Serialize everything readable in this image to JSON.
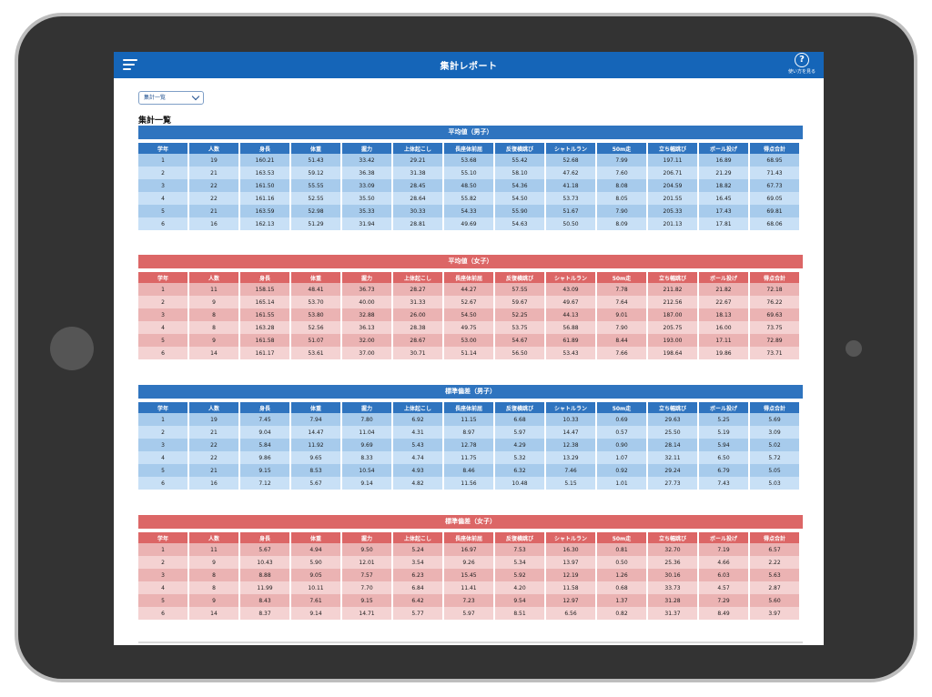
{
  "app": {
    "title": "集計レポート",
    "help_label": "使い方を見る",
    "help_icon_glyph": "?",
    "menu_icon": "hamburger-menu-icon",
    "colors": {
      "header": "#1565b8",
      "male": "#2f74bf",
      "female": "#dc6666",
      "frame": "#333333"
    }
  },
  "selector": {
    "value": "集計一覧"
  },
  "page_title": "集計一覧",
  "columns": [
    "学年",
    "人数",
    "身長",
    "体重",
    "握力",
    "上体起こし",
    "長座体前屈",
    "反復横跳び",
    "シャトルラン",
    "50m走",
    "立ち幅跳び",
    "ボール投げ",
    "得点合計"
  ],
  "sections": [
    {
      "title": "平均値（男子）",
      "rows": [
        [
          "1",
          "19",
          "160.21",
          "51.43",
          "33.42",
          "29.21",
          "53.68",
          "55.42",
          "52.68",
          "7.99",
          "197.11",
          "16.89",
          "68.95"
        ],
        [
          "2",
          "21",
          "163.53",
          "59.12",
          "36.38",
          "31.38",
          "55.10",
          "58.10",
          "47.62",
          "7.60",
          "206.71",
          "21.29",
          "71.43"
        ],
        [
          "3",
          "22",
          "161.50",
          "55.55",
          "33.09",
          "28.45",
          "48.50",
          "54.36",
          "41.18",
          "8.08",
          "204.59",
          "18.82",
          "67.73"
        ],
        [
          "4",
          "22",
          "161.16",
          "52.55",
          "35.50",
          "28.64",
          "55.82",
          "54.50",
          "53.73",
          "8.05",
          "201.55",
          "16.45",
          "69.05"
        ],
        [
          "5",
          "21",
          "163.59",
          "52.98",
          "35.33",
          "30.33",
          "54.33",
          "55.90",
          "51.67",
          "7.90",
          "205.33",
          "17.43",
          "69.81"
        ],
        [
          "6",
          "16",
          "162.13",
          "51.29",
          "31.94",
          "28.81",
          "49.69",
          "54.63",
          "50.50",
          "8.09",
          "201.13",
          "17.81",
          "68.06"
        ]
      ]
    },
    {
      "title": "平均値（女子）",
      "rows": [
        [
          "1",
          "11",
          "158.15",
          "48.41",
          "36.73",
          "28.27",
          "44.27",
          "57.55",
          "43.09",
          "7.78",
          "211.82",
          "21.82",
          "72.18"
        ],
        [
          "2",
          "9",
          "165.14",
          "53.70",
          "40.00",
          "31.33",
          "52.67",
          "59.67",
          "49.67",
          "7.64",
          "212.56",
          "22.67",
          "76.22"
        ],
        [
          "3",
          "8",
          "161.55",
          "53.80",
          "32.88",
          "26.00",
          "54.50",
          "52.25",
          "44.13",
          "9.01",
          "187.00",
          "18.13",
          "69.63"
        ],
        [
          "4",
          "8",
          "163.28",
          "52.56",
          "36.13",
          "28.38",
          "49.75",
          "53.75",
          "56.88",
          "7.90",
          "205.75",
          "16.00",
          "73.75"
        ],
        [
          "5",
          "9",
          "161.58",
          "51.07",
          "32.00",
          "28.67",
          "53.00",
          "54.67",
          "61.89",
          "8.44",
          "193.00",
          "17.11",
          "72.89"
        ],
        [
          "6",
          "14",
          "161.17",
          "53.61",
          "37.00",
          "30.71",
          "51.14",
          "56.50",
          "53.43",
          "7.66",
          "198.64",
          "19.86",
          "73.71"
        ]
      ]
    },
    {
      "title": "標準偏差（男子）",
      "rows": [
        [
          "1",
          "19",
          "7.45",
          "7.94",
          "7.80",
          "6.92",
          "11.15",
          "6.68",
          "10.33",
          "0.69",
          "29.63",
          "5.25",
          "5.69"
        ],
        [
          "2",
          "21",
          "9.04",
          "14.47",
          "11.04",
          "4.31",
          "8.97",
          "5.97",
          "14.47",
          "0.57",
          "25.50",
          "5.19",
          "3.09"
        ],
        [
          "3",
          "22",
          "5.84",
          "11.92",
          "9.69",
          "5.43",
          "12.78",
          "4.29",
          "12.38",
          "0.90",
          "28.14",
          "5.94",
          "5.02"
        ],
        [
          "4",
          "22",
          "9.86",
          "9.65",
          "8.33",
          "4.74",
          "11.75",
          "5.32",
          "13.29",
          "1.07",
          "32.11",
          "6.50",
          "5.72"
        ],
        [
          "5",
          "21",
          "9.15",
          "8.53",
          "10.54",
          "4.93",
          "8.46",
          "6.32",
          "7.46",
          "0.92",
          "29.24",
          "6.79",
          "5.05"
        ],
        [
          "6",
          "16",
          "7.12",
          "5.67",
          "9.14",
          "4.82",
          "11.56",
          "10.48",
          "5.15",
          "1.01",
          "27.73",
          "7.43",
          "5.03"
        ]
      ]
    },
    {
      "title": "標準偏差（女子）",
      "rows": [
        [
          "1",
          "11",
          "5.67",
          "4.94",
          "9.50",
          "5.24",
          "16.97",
          "7.53",
          "16.30",
          "0.81",
          "32.70",
          "7.19",
          "6.57"
        ],
        [
          "2",
          "9",
          "10.43",
          "5.90",
          "12.01",
          "3.54",
          "9.26",
          "5.34",
          "13.97",
          "0.50",
          "25.36",
          "4.66",
          "2.22"
        ],
        [
          "3",
          "8",
          "8.88",
          "9.05",
          "7.57",
          "6.23",
          "15.45",
          "5.92",
          "12.19",
          "1.26",
          "30.16",
          "6.03",
          "5.63"
        ],
        [
          "4",
          "8",
          "11.99",
          "10.11",
          "7.70",
          "6.84",
          "11.41",
          "4.20",
          "11.58",
          "0.68",
          "33.73",
          "4.57",
          "2.87"
        ],
        [
          "5",
          "9",
          "8.43",
          "7.61",
          "9.15",
          "6.42",
          "7.23",
          "9.54",
          "12.97",
          "1.37",
          "31.28",
          "7.29",
          "5.60"
        ],
        [
          "6",
          "14",
          "8.37",
          "9.14",
          "14.71",
          "5.77",
          "5.97",
          "8.51",
          "6.56",
          "0.82",
          "31.37",
          "8.49",
          "3.97"
        ]
      ]
    }
  ]
}
